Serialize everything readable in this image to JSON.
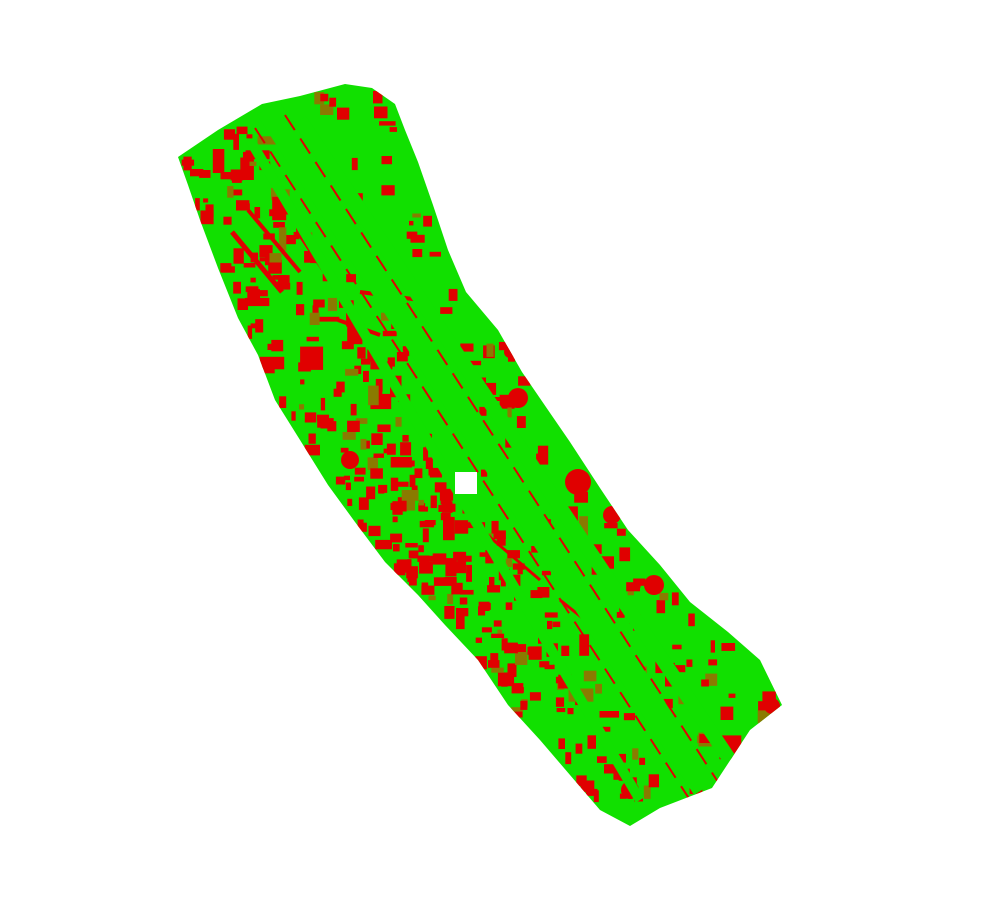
{
  "map": {
    "type": "classified-strip-map",
    "colors": {
      "background": "#ffffff",
      "green_class": "#11e000",
      "red_class": "#e00000",
      "edge_mix": "#8a7a00"
    },
    "legend": null
  }
}
